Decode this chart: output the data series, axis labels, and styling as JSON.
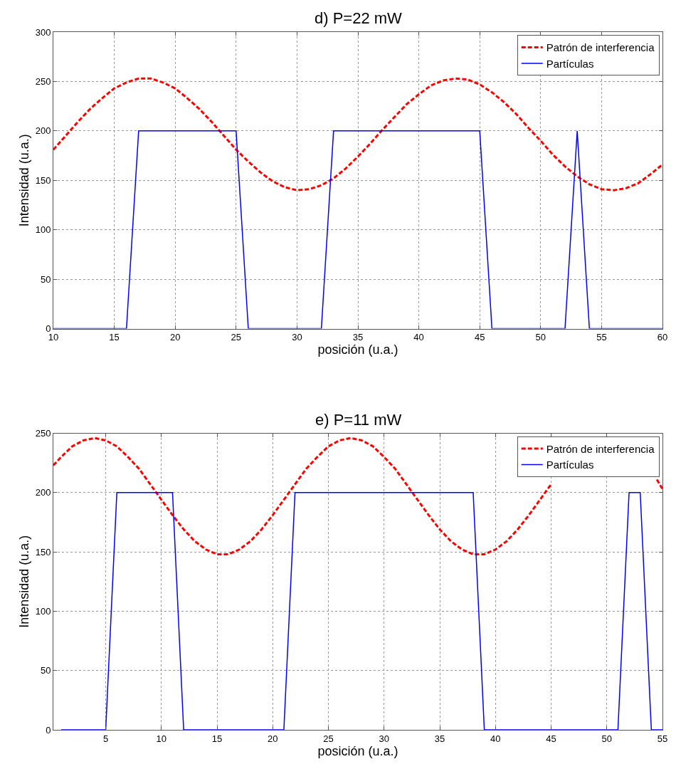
{
  "chart_data": [
    {
      "type": "line",
      "title": "d) P=22 mW",
      "xlabel": "posición (u.a.)",
      "ylabel": "Intensidad (u.a.)",
      "xlim": [
        10,
        60
      ],
      "xticks": [
        10,
        15,
        20,
        25,
        30,
        35,
        40,
        45,
        50,
        55,
        60
      ],
      "ylim": [
        0,
        300
      ],
      "yticks": [
        0,
        50,
        100,
        150,
        200,
        250,
        300
      ],
      "grid": true,
      "legend": "top right",
      "marker": "none",
      "series": [
        {
          "name": "Patrón de interferencia",
          "color": "#ff0000",
          "line_style": "dashed",
          "x": [
            10,
            11,
            12,
            13,
            14,
            15,
            16,
            17,
            18,
            19,
            20,
            21,
            22,
            23,
            24,
            25,
            26,
            27,
            28,
            29,
            30,
            31,
            32,
            33,
            34,
            35,
            36,
            37,
            38,
            39,
            40,
            41,
            42,
            43,
            44,
            45,
            46,
            47,
            48,
            49,
            50,
            51,
            52,
            53,
            54,
            55,
            56,
            57,
            58,
            59,
            60
          ],
          "values": [
            181,
            195,
            209,
            222,
            233,
            243,
            249,
            253,
            253,
            249,
            243,
            233,
            222,
            209,
            195,
            181,
            169,
            158,
            149,
            143,
            140,
            141,
            145,
            152,
            162,
            174,
            187,
            201,
            214,
            227,
            237,
            246,
            251,
            253,
            252,
            247,
            239,
            229,
            217,
            203,
            190,
            176,
            164,
            154,
            146,
            141,
            140,
            142,
            147,
            156,
            166
          ]
        },
        {
          "name": "Partículas",
          "color": "#0000ff",
          "line_style": "solid",
          "x": [
            10,
            16,
            17,
            25,
            26,
            32,
            33,
            45,
            46,
            52,
            53,
            54,
            60
          ],
          "values": [
            0,
            0,
            200,
            200,
            0,
            0,
            200,
            200,
            0,
            0,
            200,
            0,
            0
          ]
        }
      ]
    },
    {
      "type": "line",
      "title": "e) P=11 mW",
      "xlabel": "posición (u.a.)",
      "ylabel": "Intensidad (u.a.)",
      "xlim": [
        0.3,
        55
      ],
      "xticks": [
        5,
        10,
        15,
        20,
        25,
        30,
        35,
        40,
        45,
        50,
        55
      ],
      "ylim": [
        0,
        250
      ],
      "yticks": [
        0,
        50,
        100,
        150,
        200,
        250
      ],
      "grid": true,
      "legend": "top right",
      "marker": "none",
      "series": [
        {
          "name": "Patrón de interferencia",
          "color": "#ff0000",
          "line_style": "dashed",
          "x": [
            0.3,
            1,
            2,
            3,
            4,
            5,
            6,
            7,
            8,
            9,
            10,
            11,
            12,
            13,
            14,
            15,
            16,
            17,
            18,
            19,
            20,
            21,
            22,
            23,
            24,
            25,
            26,
            27,
            28,
            29,
            30,
            31,
            32,
            33,
            34,
            35,
            36,
            37,
            38,
            39,
            40,
            41,
            42,
            43,
            44,
            45,
            46,
            47,
            48,
            49,
            50,
            51,
            52,
            53,
            54.5,
            55
          ],
          "values": [
            223,
            230,
            239,
            244,
            246,
            244,
            239,
            230,
            220,
            207,
            194,
            181,
            169,
            159,
            152,
            148,
            148,
            152,
            159,
            169,
            181,
            194,
            207,
            220,
            230,
            239,
            244,
            246,
            244,
            239,
            230,
            220,
            207,
            194,
            181,
            169,
            159,
            152,
            148,
            148,
            152,
            159,
            169,
            181,
            194,
            207,
            null,
            null,
            null,
            null,
            null,
            null,
            null,
            null,
            211,
            203
          ]
        },
        {
          "name": "Partículas",
          "color": "#0000ff",
          "line_style": "solid",
          "x": [
            1,
            5,
            6,
            11,
            12,
            21,
            22,
            38,
            39,
            51,
            52,
            53,
            54,
            55
          ],
          "values": [
            0,
            0,
            200,
            200,
            0,
            0,
            200,
            200,
            0,
            0,
            200,
            200,
            0,
            0
          ]
        }
      ]
    }
  ]
}
